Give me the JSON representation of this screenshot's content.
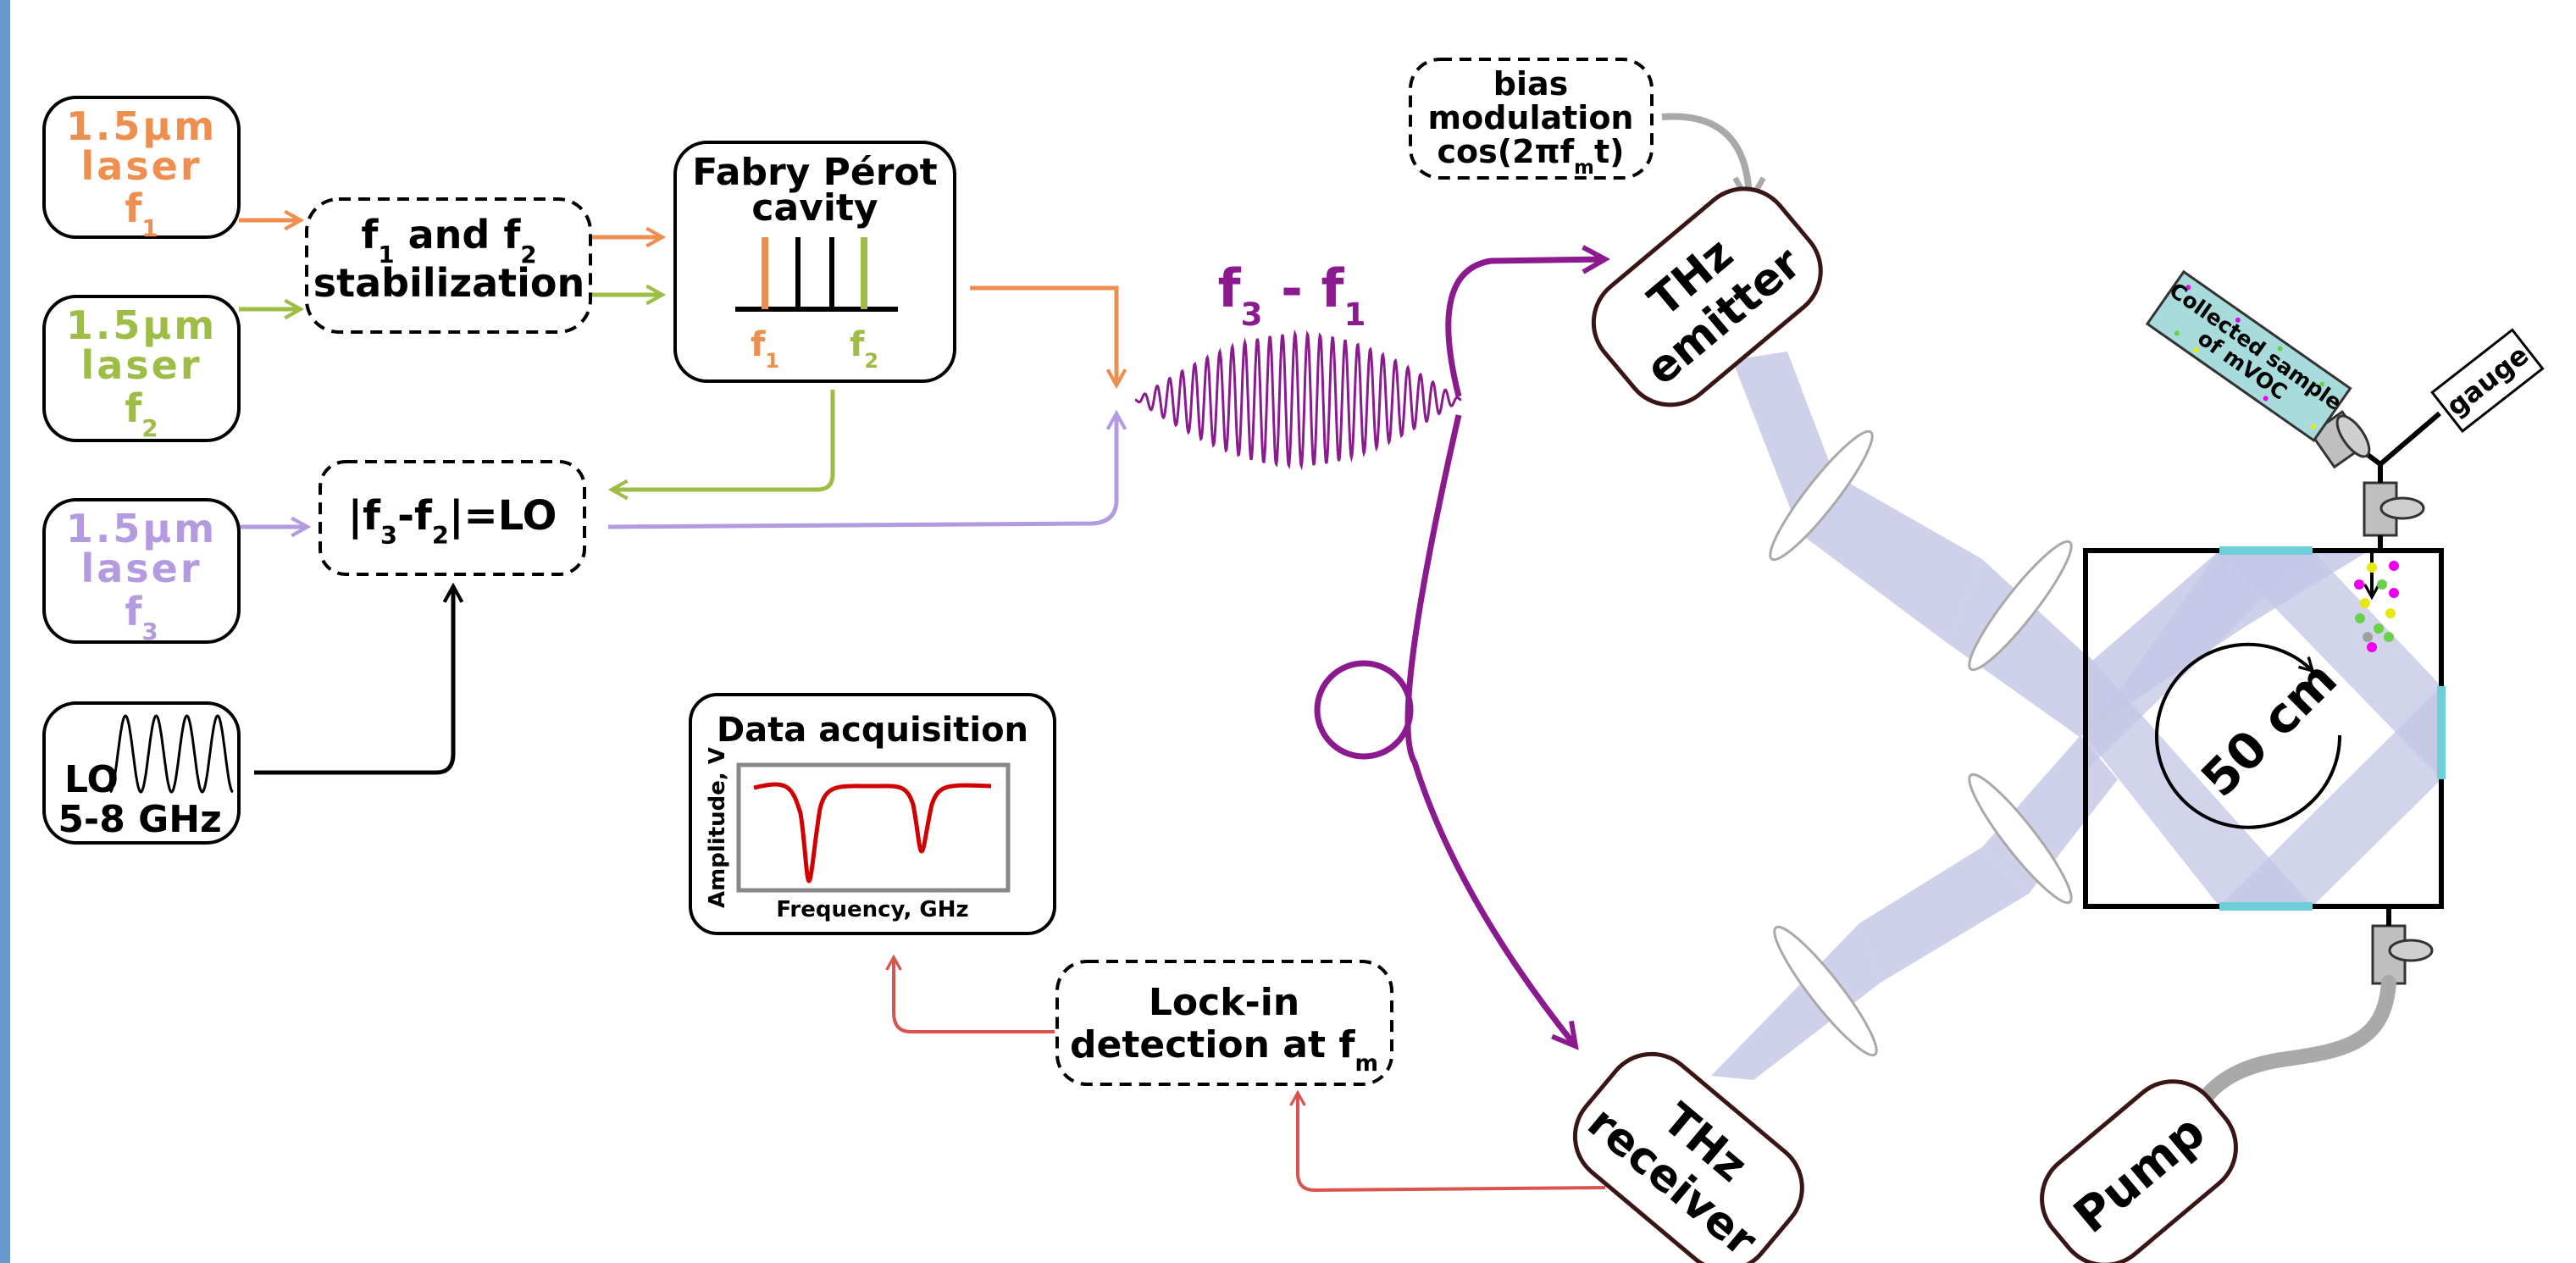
{
  "colors": {
    "orange": "#ef8f4f",
    "green": "#9ebd46",
    "lilac": "#b49be0",
    "purple": "#8a1a8e",
    "red": "#d9534f",
    "gray": "#a9a9a9",
    "beam": "#c3c6e6",
    "window": "#6ecfd8",
    "box_border": "#3a1515",
    "frame_blue": "#6699cc"
  },
  "lasers": [
    {
      "line1": "1.5μm",
      "line2": "laser",
      "sym": "f",
      "idx": "1"
    },
    {
      "line1": "1.5μm",
      "line2": "laser",
      "sym": "f",
      "idx": "2"
    },
    {
      "line1": "1.5μm",
      "line2": "laser",
      "sym": "f",
      "idx": "3"
    }
  ],
  "stabilization": {
    "f1": "f",
    "i1": "1",
    "and": " and ",
    "f2": "f",
    "i2": "2",
    "line2": "stabilization"
  },
  "fabry": {
    "line1": "Fabry Pérot",
    "line2": "cavity",
    "m1": "f",
    "i1": "1",
    "m2": "f",
    "i2": "2"
  },
  "lo_relation": {
    "a": "|f",
    "i3": "3",
    "b": "-f",
    "i2": "2",
    "c": "|=LO"
  },
  "lo_source": {
    "label": "LO",
    "range": "5-8 GHz"
  },
  "beat": {
    "a": "f",
    "i3": "3",
    "mid": " - f",
    "i1": "1"
  },
  "bias": {
    "line1": "bias",
    "line2": "modulation",
    "line3a": "cos(2πf",
    "idx": "m",
    "line3b": "t)"
  },
  "emitter": {
    "line1": "THz",
    "line2": "emitter"
  },
  "receiver": {
    "line1": "THz",
    "line2": "receiver"
  },
  "daq": {
    "title": "Data acquisition",
    "xlabel": "Frequency, GHz",
    "ylabel": "Amplitude, V"
  },
  "lockin": {
    "line1": "Lock-in",
    "line2": "detection at f",
    "idx": "m"
  },
  "cell": {
    "size": "50 cm"
  },
  "sample": {
    "line1": "Collected sample",
    "line2": "of mVOC"
  },
  "gauge": "gauge",
  "pump": "Pump"
}
